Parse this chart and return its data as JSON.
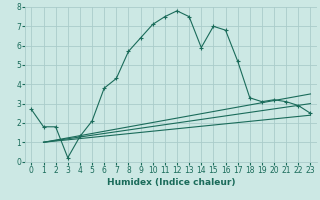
{
  "bg_color": "#cce8e4",
  "grid_color": "#aaccca",
  "line_color": "#1a6b5a",
  "xlabel": "Humidex (Indice chaleur)",
  "xlim": [
    -0.5,
    23.5
  ],
  "ylim": [
    0,
    8
  ],
  "xticks": [
    0,
    1,
    2,
    3,
    4,
    5,
    6,
    7,
    8,
    9,
    10,
    11,
    12,
    13,
    14,
    15,
    16,
    17,
    18,
    19,
    20,
    21,
    22,
    23
  ],
  "yticks": [
    0,
    1,
    2,
    3,
    4,
    5,
    6,
    7,
    8
  ],
  "line1_x": [
    0,
    1,
    2,
    3,
    4,
    5,
    6,
    7,
    8,
    9,
    10,
    11,
    12,
    13,
    14,
    15,
    16,
    17,
    18,
    19,
    20,
    21,
    22,
    23
  ],
  "line1_y": [
    2.7,
    1.8,
    1.8,
    0.2,
    1.3,
    2.1,
    3.8,
    4.3,
    5.7,
    6.4,
    7.1,
    7.5,
    7.8,
    7.5,
    5.9,
    7.0,
    6.8,
    5.2,
    3.3,
    3.1,
    3.2,
    3.1,
    2.9,
    2.5
  ],
  "line2_x": [
    1,
    23
  ],
  "line2_y": [
    1.0,
    2.4
  ],
  "line3_x": [
    1,
    23
  ],
  "line3_y": [
    1.0,
    3.0
  ],
  "line4_x": [
    1,
    23
  ],
  "line4_y": [
    1.0,
    3.5
  ],
  "xlabel_fontsize": 6.5,
  "tick_fontsize": 5.5
}
